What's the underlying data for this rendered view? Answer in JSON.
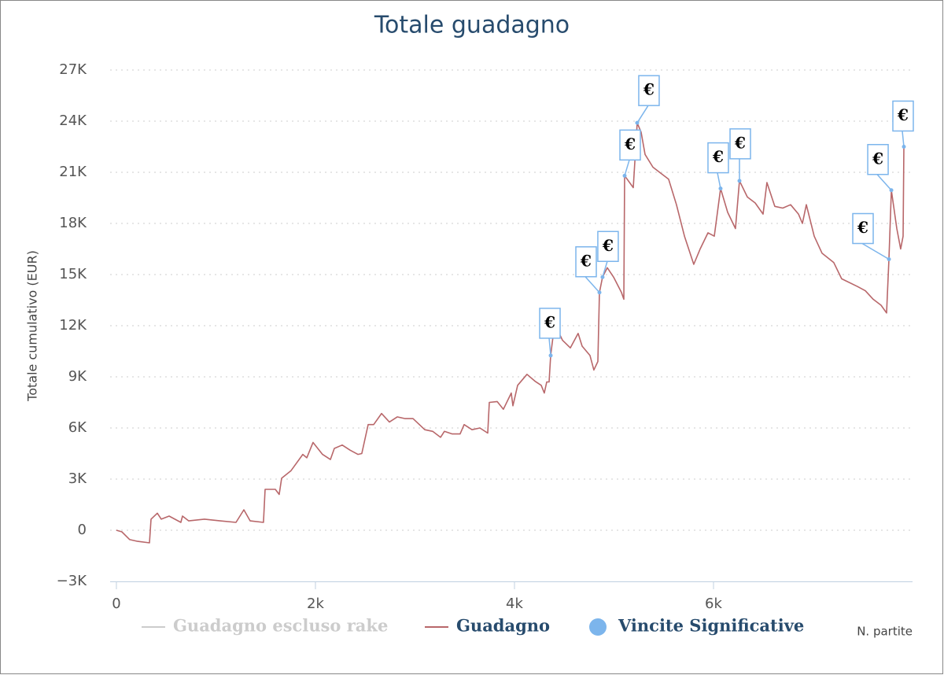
{
  "chart_data": {
    "type": "line",
    "title": "Totale guadagno",
    "y_label": "Totale cumulativo (EUR)",
    "x_label": "N. partite",
    "xlim": [
      -63,
      8000
    ],
    "xticks": [
      0,
      {
        "value": 2000,
        "label": "2k"
      },
      {
        "value": 4000,
        "label": "4k"
      },
      {
        "value": 6000,
        "label": "6k"
      }
    ],
    "ylim": [
      -3000,
      27000
    ],
    "yticks": [
      {
        "value": -3000,
        "label": "−3K"
      },
      0,
      {
        "value": 3000,
        "label": "3K"
      },
      {
        "value": 6000,
        "label": "6K"
      },
      {
        "value": 9000,
        "label": "9K"
      },
      {
        "value": 12000,
        "label": "12K"
      },
      {
        "value": 15000,
        "label": "15K"
      },
      {
        "value": 18000,
        "label": "18K"
      },
      {
        "value": 21000,
        "label": "21K"
      },
      {
        "value": 24000,
        "label": "24K"
      },
      {
        "value": 27000,
        "label": "27K"
      }
    ],
    "grid": true,
    "series": [
      {
        "name": "Guadagno escluso rake",
        "color": "#cccccc",
        "visible": false
      },
      {
        "name": "Guadagno",
        "color": "#b8676a",
        "x": [
          0,
          55,
          134,
          213,
          332,
          348,
          411,
          451,
          530,
          648,
          664,
          727,
          885,
          1043,
          1202,
          1281,
          1344,
          1478,
          1494,
          1597,
          1636,
          1660,
          1755,
          1873,
          1913,
          1976,
          2071,
          2150,
          2190,
          2269,
          2348,
          2427,
          2466,
          2530,
          2585,
          2664,
          2743,
          2822,
          2901,
          2980,
          3099,
          3178,
          3257,
          3296,
          3375,
          3454,
          3494,
          3573,
          3652,
          3731,
          3747,
          3826,
          3889,
          3968,
          3984,
          4032,
          4126,
          4205,
          4269,
          4300,
          4324,
          4348,
          4364,
          4403,
          4482,
          4561,
          4640,
          4680,
          4759,
          4798,
          4838,
          4854,
          4885,
          4933,
          4996,
          5075,
          5099,
          5107,
          5194,
          5233,
          5273,
          5312,
          5391,
          5470,
          5549,
          5628,
          5708,
          5802,
          5866,
          5945,
          6008,
          6071,
          6142,
          6221,
          6261,
          6340,
          6419,
          6498,
          6537,
          6616,
          6696,
          6775,
          6854,
          6893,
          6933,
          7012,
          7091,
          7209,
          7288,
          7447,
          7526,
          7605,
          7684,
          7739,
          7763,
          7787,
          7842,
          7881,
          7905,
          7913
        ],
        "values": [
          0,
          -90,
          -550,
          -650,
          -740,
          650,
          1000,
          650,
          830,
          460,
          830,
          550,
          650,
          550,
          460,
          1200,
          550,
          460,
          2400,
          2400,
          2100,
          3050,
          3500,
          4450,
          4250,
          5150,
          4450,
          4150,
          4800,
          5000,
          4700,
          4450,
          4500,
          6200,
          6200,
          6850,
          6350,
          6650,
          6550,
          6550,
          5900,
          5800,
          5450,
          5800,
          5650,
          5650,
          6200,
          5900,
          6000,
          5700,
          7500,
          7550,
          7100,
          8050,
          7300,
          8500,
          9150,
          8750,
          8500,
          8050,
          8700,
          8700,
          10250,
          12100,
          11150,
          10700,
          11550,
          10800,
          10250,
          9400,
          9900,
          13950,
          14850,
          15400,
          14850,
          13950,
          13550,
          20800,
          20100,
          23900,
          23350,
          22050,
          21300,
          20950,
          20600,
          19100,
          17250,
          15600,
          16500,
          17450,
          17250,
          20050,
          18650,
          17700,
          20500,
          19550,
          19200,
          18550,
          20400,
          19000,
          18900,
          19100,
          18550,
          18000,
          19100,
          17250,
          16250,
          15700,
          14750,
          14300,
          14050,
          13550,
          13200,
          12750,
          15900,
          19950,
          17700,
          16500,
          17250,
          22500
        ]
      },
      {
        "name": "Vincite Significative",
        "color": "#7cb5ec",
        "x": [
          4364,
          4854,
          4885,
          5107,
          5233,
          6071,
          6261,
          7763,
          7787,
          7913
        ],
        "values": [
          10250,
          13950,
          14850,
          20800,
          23900,
          20050,
          20500,
          15900,
          19950,
          22500
        ],
        "labels": [
          "€",
          "€",
          "€",
          "€",
          "€",
          "€",
          "€",
          "€",
          "€",
          "€"
        ]
      }
    ]
  }
}
